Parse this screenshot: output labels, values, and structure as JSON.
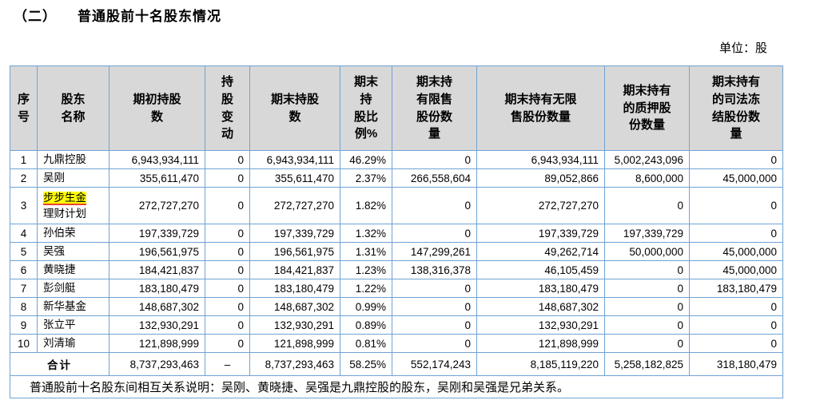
{
  "page": {
    "title_index": "（二）",
    "title_text": "普通股前十名股东情况",
    "unit_label": "单位：股"
  },
  "colors": {
    "table_border": "#6fa3d4",
    "header_bg": "#d8d8d8",
    "highlight_bg": "#ffff00",
    "highlight_underline": "#e8442c"
  },
  "table": {
    "headers": [
      "序\n号",
      "股东\n名称",
      "期初持股\n数",
      "持\n股\n变\n动",
      "期末持股\n数",
      "期末\n持\n股比\n例%",
      "期末持\n有限售\n股份数\n量",
      "期末持有无限\n售股份数量",
      "期末持有\n的质押股\n份数量",
      "期末持有\n的司法冻\n结股份数\n量"
    ],
    "column_keys": [
      "initial-holdings",
      "holding-change",
      "final-holdings",
      "holding-ratio",
      "restricted-shares",
      "unrestricted-shares",
      "pledged-shares",
      "frozen-shares"
    ],
    "rows": [
      {
        "no": "1",
        "name": "九鼎控股",
        "values": [
          "6,943,934,111",
          "0",
          "6,943,934,111",
          "46.29%",
          "0",
          "6,943,934,111",
          "5,002,243,096",
          "0"
        ]
      },
      {
        "no": "2",
        "name": "吴刚",
        "values": [
          "355,611,470",
          "0",
          "355,611,470",
          "2.37%",
          "266,558,604",
          "89,052,866",
          "8,600,000",
          "45,000,000"
        ]
      },
      {
        "no": "3",
        "name_highlight": "步步生金",
        "name_rest": "理财计划",
        "values": [
          "272,727,270",
          "0",
          "272,727,270",
          "1.82%",
          "0",
          "272,727,270",
          "0",
          "0"
        ]
      },
      {
        "no": "4",
        "name": "孙伯荣",
        "values": [
          "197,339,729",
          "0",
          "197,339,729",
          "1.32%",
          "0",
          "197,339,729",
          "197,339,729",
          "0"
        ]
      },
      {
        "no": "5",
        "name": "吴强",
        "values": [
          "196,561,975",
          "0",
          "196,561,975",
          "1.31%",
          "147,299,261",
          "49,262,714",
          "50,000,000",
          "45,000,000"
        ]
      },
      {
        "no": "6",
        "name": "黄晓捷",
        "values": [
          "184,421,837",
          "0",
          "184,421,837",
          "1.23%",
          "138,316,378",
          "46,105,459",
          "0",
          "45,000,000"
        ]
      },
      {
        "no": "7",
        "name": "彭剑艇",
        "values": [
          "183,180,479",
          "0",
          "183,180,479",
          "1.22%",
          "0",
          "183,180,479",
          "0",
          "183,180,479"
        ]
      },
      {
        "no": "8",
        "name": "新华基金",
        "values": [
          "148,687,302",
          "0",
          "148,687,302",
          "0.99%",
          "0",
          "148,687,302",
          "0",
          "0"
        ]
      },
      {
        "no": "9",
        "name": "张立平",
        "values": [
          "132,930,291",
          "0",
          "132,930,291",
          "0.89%",
          "0",
          "132,930,291",
          "0",
          "0"
        ]
      },
      {
        "no": "10",
        "name": "刘清瑜",
        "values": [
          "121,898,999",
          "0",
          "121,898,999",
          "0.81%",
          "0",
          "121,898,999",
          "0",
          "0"
        ]
      }
    ],
    "total": {
      "label": "合计",
      "values": [
        "8,737,293,463",
        "–",
        "8,737,293,463",
        "58.25%",
        "552,174,243",
        "8,185,119,220",
        "5,258,182,825",
        "318,180,479"
      ]
    },
    "note": "普通股前十名股东间相互关系说明：吴刚、黄晓捷、吴强是九鼎控股的股东，吴刚和吴强是兄弟关系。"
  }
}
